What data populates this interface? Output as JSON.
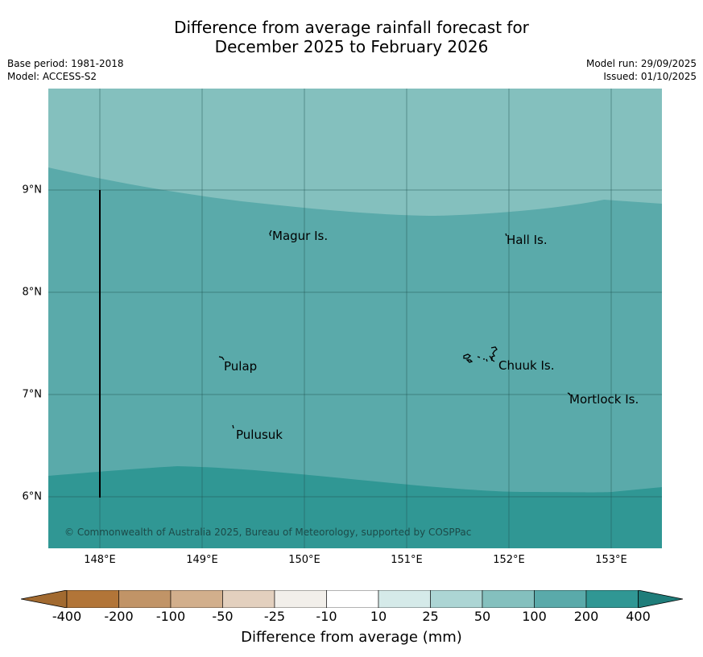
{
  "title_line1": "Difference from average rainfall forecast for",
  "title_line2": "December 2025 to February 2026",
  "base_period": "Base period: 1981-2018",
  "model": "Model: ACCESS-S2",
  "model_run": "Model run: 29/09/2025",
  "issued": "Issued: 01/10/2025",
  "map": {
    "lat_labels": [
      "9°N",
      "8°N",
      "7°N",
      "6°N"
    ],
    "lon_labels": [
      "148°E",
      "149°E",
      "150°E",
      "151°E",
      "152°E",
      "153°E"
    ],
    "places": [
      "Magur Is.",
      "Hall Is.",
      "Pulap",
      "Chuuk Is.",
      "Mortlock Is.",
      "Pulusuk"
    ],
    "copyright": "© Commonwealth of Australia 2025, Bureau of Meteorology, supported by COSPPac",
    "zone_colors": {
      "light": "#84c0be",
      "mid": "#5aaaaa",
      "dark": "#309794"
    }
  },
  "colorbar": {
    "ticks": [
      "-400",
      "-200",
      "-100",
      "-50",
      "-25",
      "-10",
      "10",
      "25",
      "50",
      "100",
      "200",
      "400"
    ],
    "colors": [
      "#a26a30",
      "#b27538",
      "#c19467",
      "#d2af8c",
      "#e3d0be",
      "#f2efea",
      "#ffffff",
      "#d5eae9",
      "#acd5d4",
      "#84c0be",
      "#5aaaaa",
      "#309794",
      "#1f7d7a"
    ],
    "label": "Difference from average (mm)"
  }
}
